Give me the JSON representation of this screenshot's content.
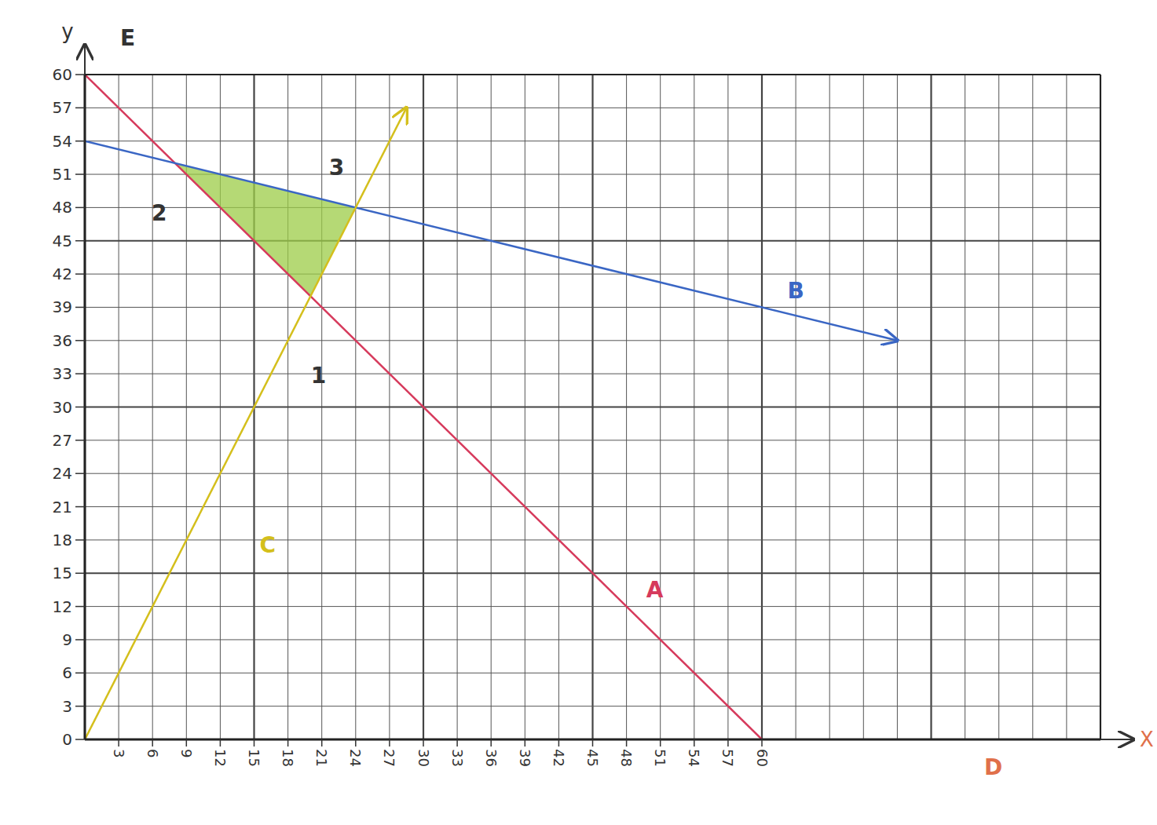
{
  "chart_data": {
    "type": "line",
    "x_label": "X",
    "y_label": "y",
    "xlim": [
      0,
      90
    ],
    "ylim": [
      0,
      60
    ],
    "xticks": [
      3,
      6,
      9,
      12,
      15,
      18,
      21,
      24,
      27,
      30,
      33,
      36,
      39,
      42,
      45,
      48,
      51,
      54,
      57,
      60
    ],
    "yticks": [
      0,
      3,
      6,
      9,
      12,
      15,
      18,
      21,
      24,
      27,
      30,
      33,
      36,
      39,
      42,
      45,
      48,
      51,
      54,
      57,
      60
    ],
    "grid": true,
    "legend": false,
    "series": [
      {
        "color": "#d63a5c",
        "x": [
          0,
          60
        ],
        "values": [
          60,
          0
        ],
        "marker": "none",
        "line_style": "solid"
      },
      {
        "color": "#3a66c4",
        "x": [
          0,
          72
        ],
        "values": [
          54,
          36
        ],
        "marker": "arrow",
        "line_style": "solid"
      },
      {
        "color": "#d4bf1c",
        "x": [
          0,
          28.5
        ],
        "values": [
          0,
          57
        ],
        "marker": "arrow",
        "line_style": "solid"
      }
    ],
    "feasible_region": {
      "x": [
        8,
        24,
        20
      ],
      "y": [
        52,
        48,
        40
      ],
      "color": "#9ccc47"
    },
    "annotations": [
      {
        "text": "A",
        "x": 50.5,
        "y": 13.5,
        "color": "#d63a5c"
      },
      {
        "text": "B",
        "x": 63,
        "y": 40.5,
        "color": "#3a66c4"
      },
      {
        "text": "C",
        "x": 16.2,
        "y": 17.5,
        "color": "#d4bf1c"
      },
      {
        "text": "D",
        "x": 80.5,
        "y": -2.5,
        "color": "#e0704a"
      },
      {
        "text": "E",
        "x": 3.8,
        "y": 63.3,
        "color": "#333333"
      },
      {
        "text": "1",
        "x": 20.7,
        "y": 32.8,
        "color": "#333333"
      },
      {
        "text": "2",
        "x": 6.6,
        "y": 47.5,
        "color": "#333333"
      },
      {
        "text": "3",
        "x": 22.3,
        "y": 51.6,
        "color": "#333333"
      }
    ]
  }
}
